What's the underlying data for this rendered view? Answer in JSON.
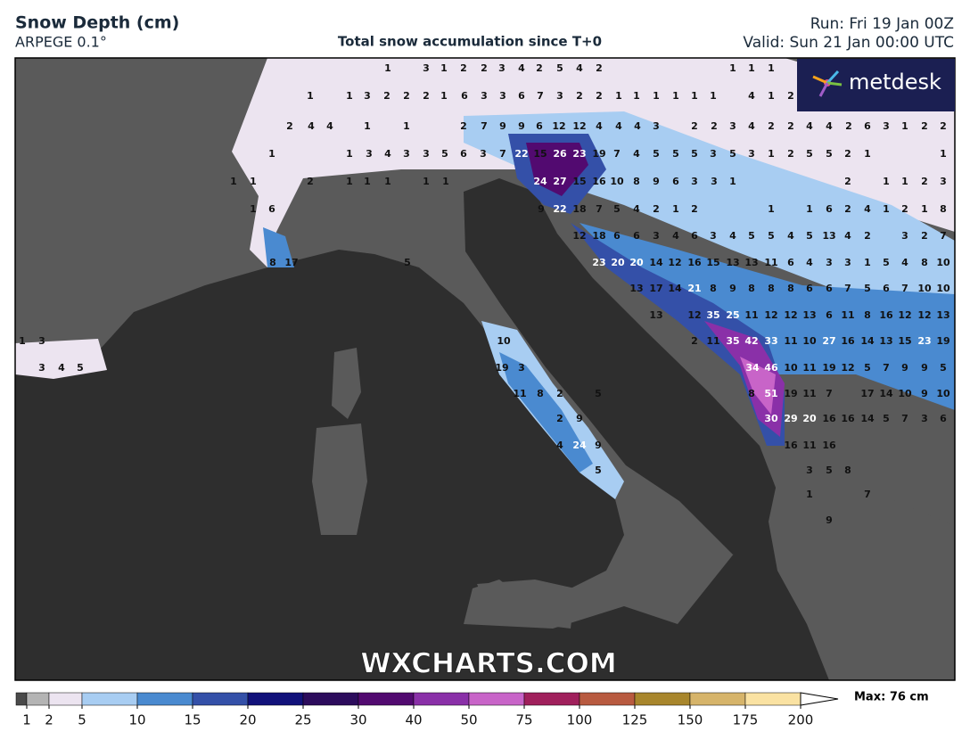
{
  "header": {
    "title": "Snow Depth (cm)",
    "model": "ARPEGE 0.1°",
    "subtitle": "Total snow accumulation since T+0",
    "run": "Run: Fri 19 Jan 00Z",
    "valid": "Valid: Sun 21 Jan 00:00 UTC"
  },
  "logo": "metdesk",
  "watermark": "WXCHARTS.COM",
  "map": {
    "label_rows": [
      [
        1,
        3,
        1,
        2,
        2,
        3,
        4,
        2,
        5,
        4,
        2,
        1,
        1,
        1
      ],
      [
        1,
        1,
        3,
        2,
        2,
        2,
        1,
        6,
        3,
        3,
        6,
        7,
        3,
        2,
        2,
        1,
        1,
        1,
        1,
        1,
        1,
        4,
        1,
        2
      ],
      [
        2,
        4,
        4,
        1,
        1,
        2,
        7,
        9,
        9,
        6,
        12,
        12,
        4,
        4,
        4,
        3,
        2,
        2,
        3,
        4,
        2,
        2,
        4,
        4,
        2,
        6,
        3,
        1,
        2,
        2
      ],
      [
        1,
        1,
        3,
        4,
        3,
        3,
        5,
        6,
        3,
        7,
        22,
        15,
        26,
        23,
        19,
        7,
        4,
        5,
        5,
        5,
        3,
        5,
        3,
        1,
        2,
        5,
        5,
        2,
        1,
        1
      ],
      [
        1,
        1,
        2,
        1,
        1,
        1,
        1,
        1,
        24,
        27,
        15,
        16,
        10,
        8,
        9,
        6,
        3,
        3,
        1,
        2,
        1,
        1,
        2,
        3
      ],
      [
        1,
        6,
        9,
        22,
        18,
        7,
        5,
        4,
        2,
        1,
        2,
        1,
        1,
        6,
        2,
        4,
        1,
        2,
        1,
        8
      ],
      [
        12,
        18,
        6,
        6,
        3,
        4,
        6,
        3,
        4,
        5,
        5,
        4,
        5,
        13,
        4,
        2,
        3,
        2,
        7
      ],
      [
        8,
        17,
        5,
        23,
        20,
        20,
        14,
        12,
        16,
        15,
        13,
        13,
        11,
        6,
        4,
        3,
        3,
        1,
        5,
        4,
        8,
        10
      ],
      [
        13,
        17,
        14,
        21,
        8,
        9,
        8,
        8,
        8,
        6,
        6,
        7,
        5,
        6,
        7,
        10,
        10
      ],
      [
        13,
        12,
        35,
        25,
        11,
        12,
        12,
        13,
        6,
        11,
        8,
        16,
        12,
        12,
        13
      ],
      [
        1,
        3,
        10,
        2,
        11,
        35,
        42,
        33,
        11,
        10,
        27,
        16,
        14,
        13,
        15,
        23,
        19
      ],
      [
        3,
        4,
        5,
        19,
        3,
        34,
        46,
        10,
        11,
        19,
        12,
        5,
        7,
        9,
        9,
        5
      ],
      [
        11,
        8,
        2,
        5,
        8,
        51,
        19,
        11,
        7,
        17,
        14,
        10,
        9,
        10
      ],
      [
        2,
        9,
        30,
        29,
        20,
        16,
        16,
        14,
        5,
        7,
        3,
        6
      ],
      [
        4,
        24,
        9,
        16,
        11,
        16
      ],
      [
        5,
        3,
        5,
        8
      ],
      [
        1,
        7
      ],
      [
        9
      ]
    ]
  },
  "legend": {
    "ticks": [
      1,
      2,
      5,
      10,
      15,
      20,
      25,
      30,
      40,
      50,
      75,
      100,
      125,
      150,
      175,
      200
    ],
    "colors": [
      "#4a4a4a",
      "#b4b4b4",
      "#ece4f0",
      "#a8cdf2",
      "#4a8ad0",
      "#3450a8",
      "#12127a",
      "#2c0c5c",
      "#520a70",
      "#8a30a8",
      "#c864c8",
      "#a0205c",
      "#b85a40",
      "#a8862c",
      "#d6b46a",
      "#fae2a2"
    ],
    "max_label": "Max: 76 cm"
  }
}
